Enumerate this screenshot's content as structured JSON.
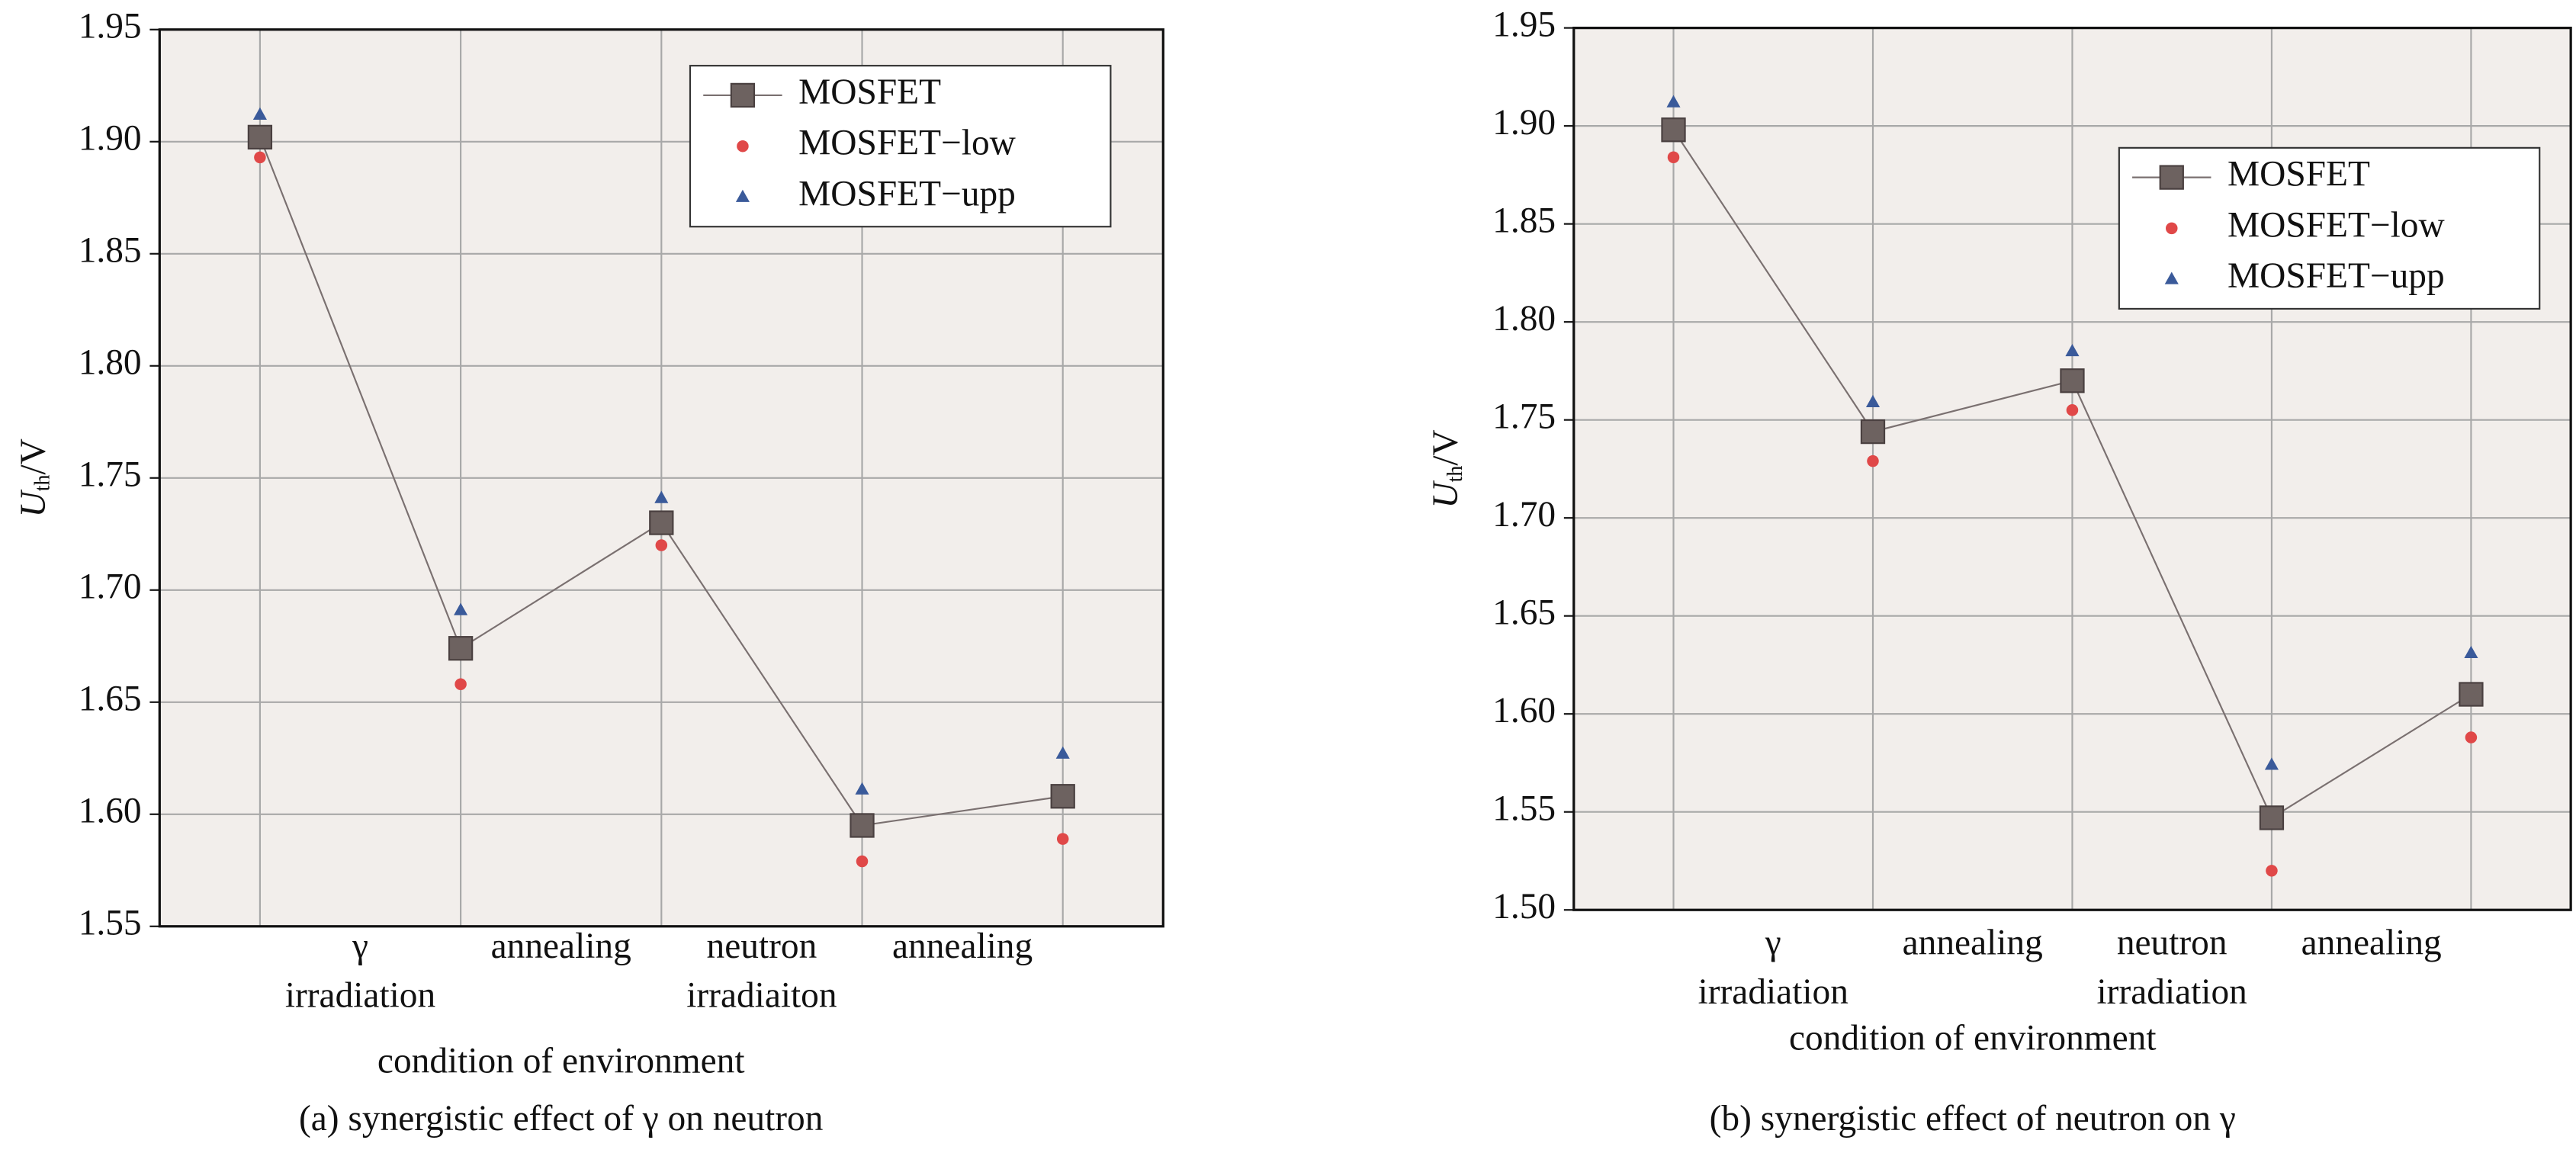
{
  "chart_data": [
    {
      "type": "line",
      "categories": [
        null,
        [
          "γ",
          "irradiation"
        ],
        [
          "annealing"
        ],
        [
          "neutron",
          "irradiaiton"
        ],
        [
          "annealing"
        ]
      ],
      "series": [
        {
          "name": "MOSFET",
          "color": "#6d6260",
          "marker": "square",
          "line": true,
          "values": [
            1.902,
            1.674,
            1.73,
            1.595,
            1.608
          ]
        },
        {
          "name": "MOSFET−low",
          "color": "#e04848",
          "marker": "circle",
          "line": false,
          "values": [
            1.893,
            1.658,
            1.72,
            1.579,
            1.589
          ]
        },
        {
          "name": "MOSFET−upp",
          "color": "#3a5a9a",
          "marker": "triangle",
          "line": false,
          "values": [
            1.912,
            1.691,
            1.741,
            1.611,
            1.627
          ]
        }
      ],
      "ylabel": {
        "symbol": "U",
        "subscript": "th",
        "unit": "/V"
      },
      "xlabel": "condition of environment",
      "caption": "(a) synergistic effect of γ on neutron",
      "ylim": [
        1.55,
        1.95
      ],
      "yticks": [
        1.55,
        {
          "value": 1.6,
          "label": "1.60"
        },
        1.65,
        {
          "value": 1.7,
          "label": "1.70"
        },
        1.75,
        {
          "value": 1.8,
          "label": "1.80"
        },
        1.85,
        {
          "value": 1.9,
          "label": "1.90"
        },
        1.95
      ],
      "grid": true,
      "legend": "upper right"
    },
    {
      "type": "line",
      "categories": [
        null,
        [
          "γ",
          "irradiation"
        ],
        [
          "annealing"
        ],
        [
          "neutron",
          "irradiation"
        ],
        [
          "annealing"
        ]
      ],
      "series": [
        {
          "name": "MOSFET",
          "color": "#6d6260",
          "marker": "square",
          "line": true,
          "values": [
            1.898,
            1.744,
            1.77,
            1.547,
            1.61
          ]
        },
        {
          "name": "MOSFET−low",
          "color": "#e04848",
          "marker": "circle",
          "line": false,
          "values": [
            1.884,
            1.729,
            1.755,
            1.52,
            1.588
          ]
        },
        {
          "name": "MOSFET−upp",
          "color": "#3a5a9a",
          "marker": "triangle",
          "line": false,
          "values": [
            1.912,
            1.759,
            1.785,
            1.574,
            1.631
          ]
        }
      ],
      "ylabel": {
        "symbol": "U",
        "subscript": "th",
        "unit": "/V"
      },
      "xlabel": "condition of environment",
      "caption": "(b) synergistic effect of neutron on γ",
      "ylim": [
        1.5,
        1.95
      ],
      "yticks": [
        {
          "value": 1.5,
          "label": "1.50"
        },
        1.55,
        {
          "value": 1.6,
          "label": "1.60"
        },
        1.65,
        {
          "value": 1.7,
          "label": "1.70"
        },
        1.75,
        {
          "value": 1.8,
          "label": "1.80"
        },
        1.85,
        {
          "value": 1.9,
          "label": "1.90"
        },
        1.95
      ],
      "grid": true,
      "legend": "upper right"
    }
  ]
}
